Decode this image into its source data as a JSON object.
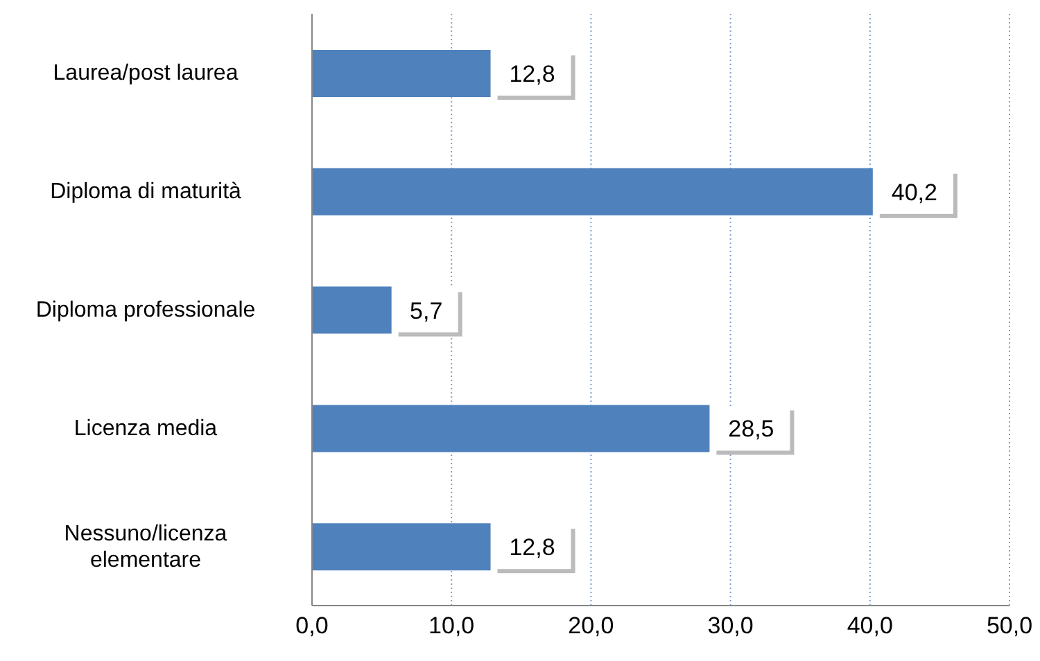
{
  "chart_data": {
    "type": "bar",
    "orientation": "horizontal",
    "categories": [
      "Laurea/post laurea",
      "Diploma di maturità",
      "Diploma professionale",
      "Licenza media",
      "Nessuno/licenza elementare"
    ],
    "values": [
      12.8,
      40.2,
      5.7,
      28.5,
      12.8
    ],
    "value_labels": [
      "12,8",
      "40,2",
      "5,7",
      "28,5",
      "12,8"
    ],
    "color": "#4f81bd",
    "xlim": [
      0,
      50
    ],
    "xticks": [
      {
        "value": 0,
        "label": "0,0"
      },
      {
        "value": 10,
        "label": "10,0"
      },
      {
        "value": 20,
        "label": "20,0"
      },
      {
        "value": 30,
        "label": "30,0"
      },
      {
        "value": 40,
        "label": "40,0"
      },
      {
        "value": 50,
        "label": "50,0"
      }
    ],
    "grid": "x",
    "legend": false
  }
}
